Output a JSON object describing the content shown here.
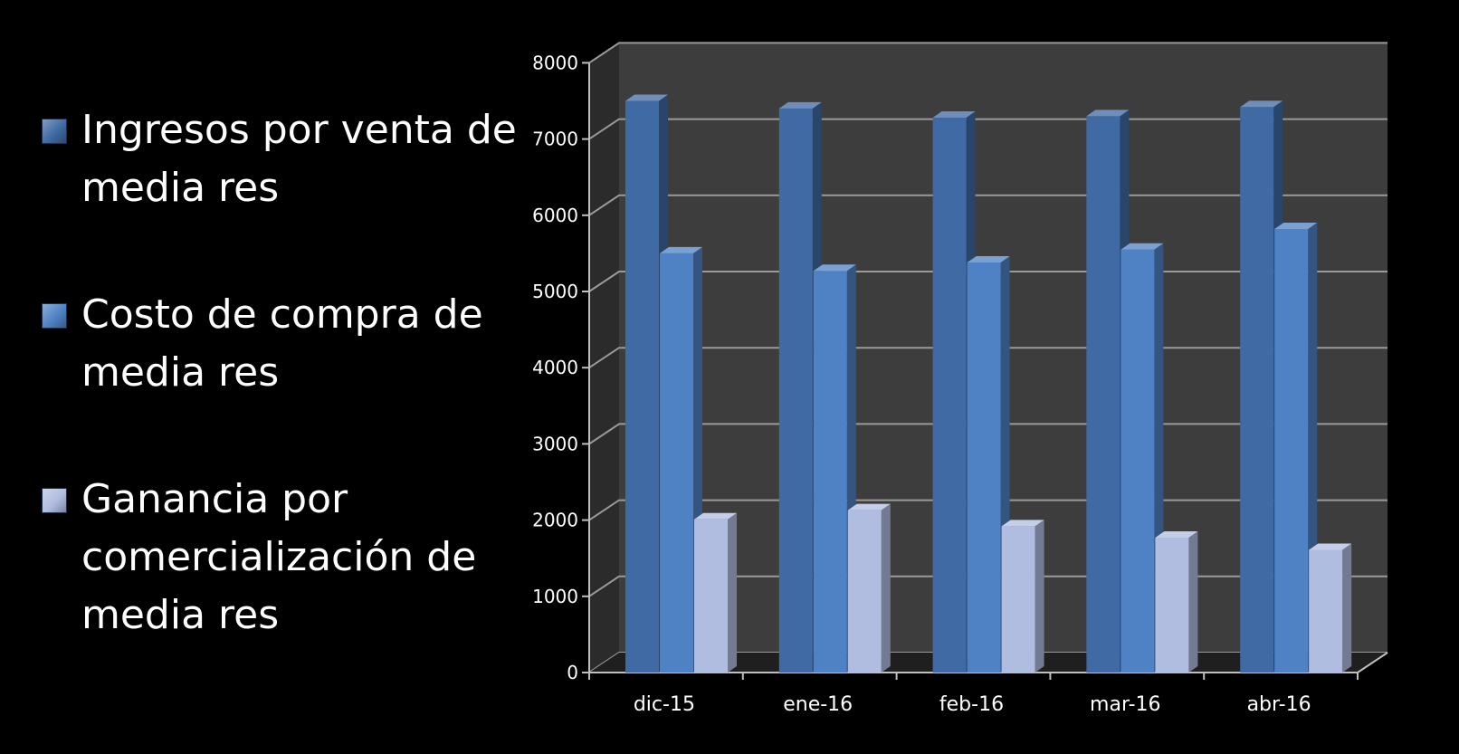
{
  "chart_data": {
    "type": "bar",
    "categories": [
      "dic-15",
      "ene-16",
      "feb-16",
      "mar-16",
      "abr-16"
    ],
    "series": [
      {
        "name": "Ingresos por venta de media res",
        "values": [
          7500,
          7400,
          7280,
          7300,
          7420
        ],
        "color": "#3f6aa3"
      },
      {
        "name": "Costo de compra de media res",
        "values": [
          5500,
          5270,
          5380,
          5550,
          5820
        ],
        "color": "#4f82c4"
      },
      {
        "name": "Ganancia por comercialización de media res",
        "values": [
          2010,
          2130,
          1920,
          1770,
          1610
        ],
        "color": "#b0bde0"
      }
    ],
    "yticks": [
      "0",
      "1000",
      "2000",
      "3000",
      "4000",
      "5000",
      "6000",
      "7000",
      "8000"
    ],
    "ylim": [
      0,
      8000
    ],
    "title": "",
    "xlabel": "",
    "ylabel": "",
    "grid": true,
    "legend_position": "left",
    "style": "3d-clustered-column",
    "background_color": "#000000",
    "plot_wall_color": "#3d3d3d",
    "text_color": "#ffffff"
  }
}
